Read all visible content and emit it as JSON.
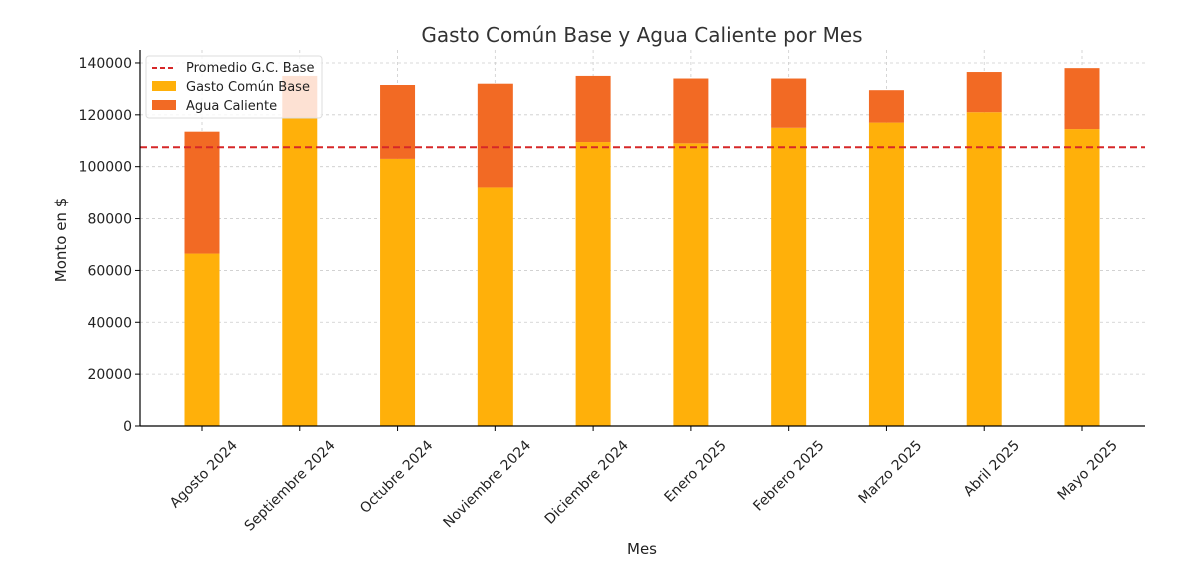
{
  "chart_data": {
    "type": "bar",
    "stacked": true,
    "title": "Gasto Común Base y Agua Caliente por Mes",
    "xlabel": "Mes",
    "ylabel": "Monto en $",
    "ylim": [
      0,
      145000
    ],
    "yticks": [
      0,
      20000,
      40000,
      60000,
      80000,
      100000,
      120000,
      140000
    ],
    "grid": true,
    "legend_position": "top-left",
    "categories": [
      "Agosto 2024",
      "Septiembre 2024",
      "Octubre 2024",
      "Noviembre 2024",
      "Diciembre 2024",
      "Enero 2025",
      "Febrero 2025",
      "Marzo 2025",
      "Abril 2025",
      "Mayo 2025"
    ],
    "series": [
      {
        "name": "Gasto Común Base",
        "color": "#FFB00A",
        "values": [
          66500,
          119000,
          103000,
          92000,
          109500,
          109000,
          115000,
          117000,
          121000,
          114500
        ]
      },
      {
        "name": "Agua Caliente",
        "color": "#F26A24",
        "values": [
          47000,
          16000,
          28500,
          40000,
          25500,
          25000,
          19000,
          12500,
          15500,
          23500
        ]
      }
    ],
    "reference_line": {
      "name": "Promedio G.C. Base",
      "value": 107500,
      "color": "#D62728",
      "style": "dashed"
    }
  }
}
